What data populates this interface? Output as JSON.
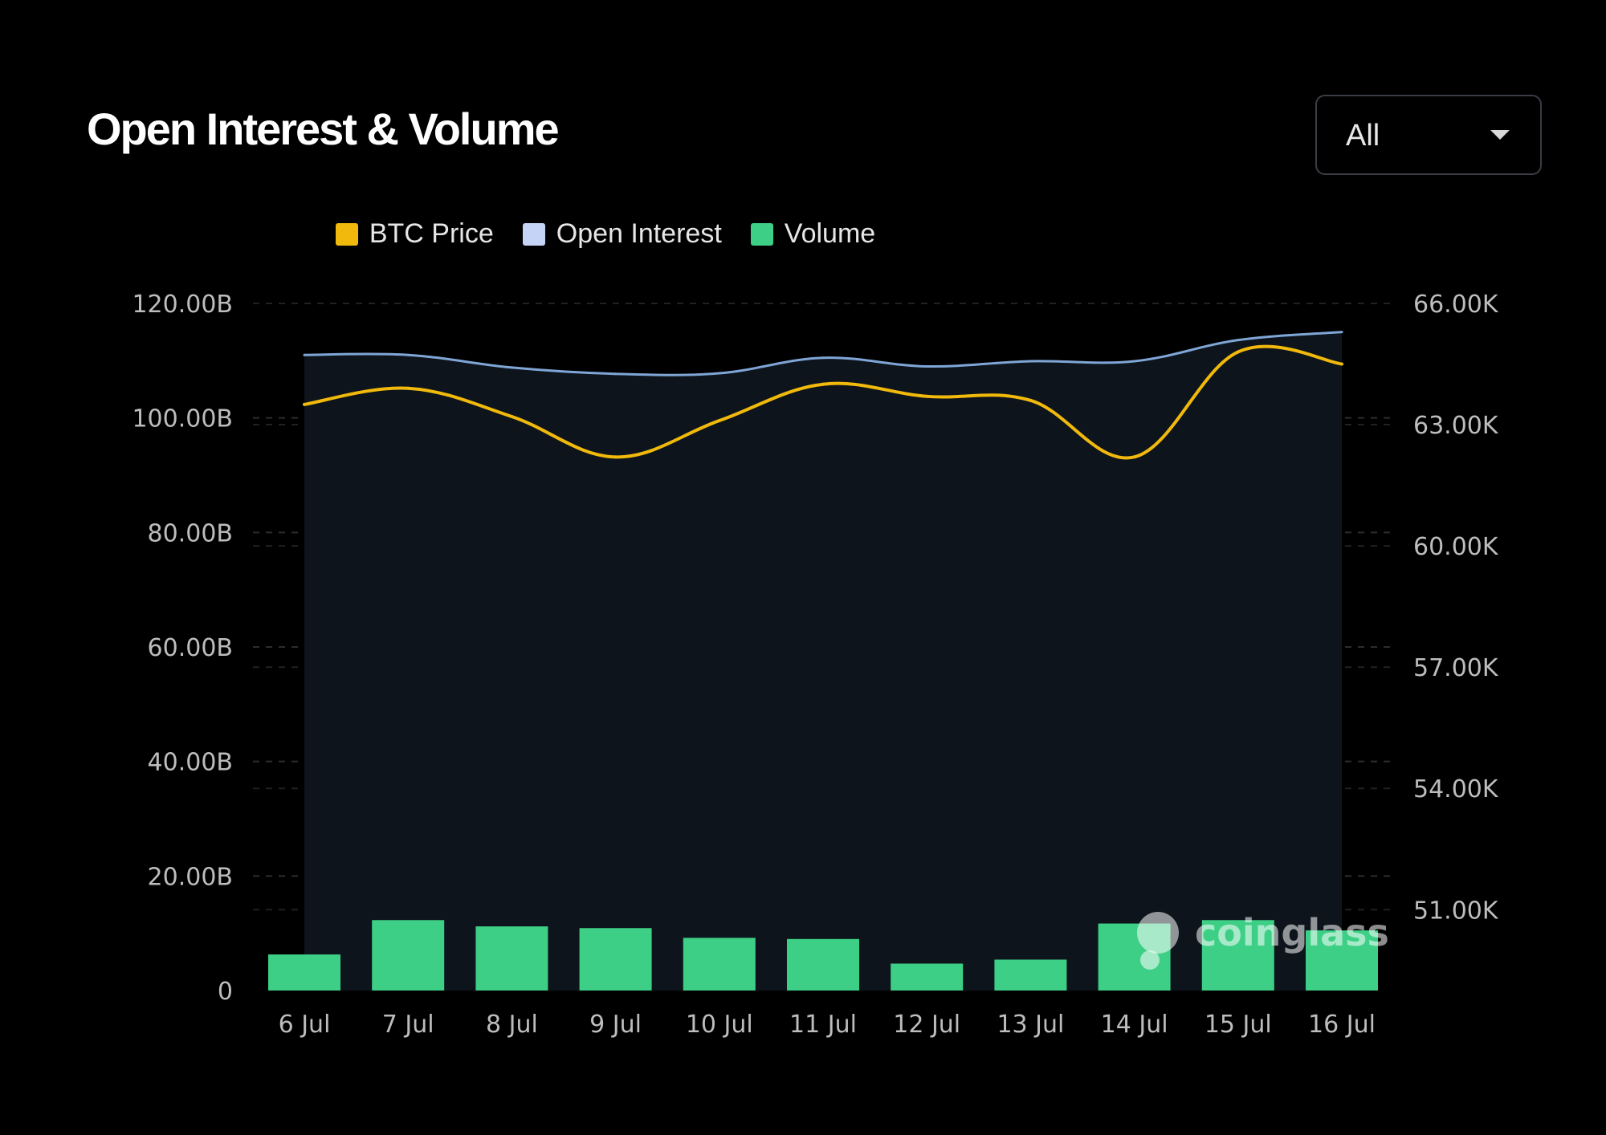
{
  "header": {
    "title": "Open Interest & Volume",
    "range_select": {
      "value": "All"
    }
  },
  "legend": [
    {
      "label": "BTC Price",
      "color": "#f0b90b"
    },
    {
      "label": "Open Interest",
      "color": "#c5d3f7"
    },
    {
      "label": "Volume",
      "color": "#3ccf85"
    }
  ],
  "watermark": "coinglass",
  "chart_data": {
    "type": "bar",
    "categories": [
      "6 Jul",
      "7 Jul",
      "8 Jul",
      "9 Jul",
      "10 Jul",
      "11 Jul",
      "12 Jul",
      "13 Jul",
      "14 Jul",
      "15 Jul",
      "16 Jul"
    ],
    "y_left": {
      "ticks": [
        "0",
        "20.00B",
        "40.00B",
        "60.00B",
        "80.00B",
        "100.00B",
        "120.00B"
      ],
      "range": [
        0,
        120
      ]
    },
    "y_right": {
      "ticks": [
        "51.00K",
        "54.00K",
        "57.00K",
        "60.00K",
        "63.00K",
        "66.00K"
      ],
      "range": [
        49000,
        66000
      ]
    },
    "grid": "horizontal-dashed",
    "legend_position": "top-center",
    "series": [
      {
        "name": "Volume",
        "type": "bar",
        "axis": "left",
        "unit": "B",
        "values": [
          6.3,
          12.3,
          11.2,
          10.9,
          9.2,
          9.0,
          4.7,
          5.4,
          11.7,
          12.3,
          10.5
        ]
      },
      {
        "name": "Open Interest",
        "type": "area",
        "axis": "left",
        "unit": "B",
        "values": [
          111.0,
          111.0,
          108.8,
          107.7,
          107.8,
          110.5,
          109.0,
          109.9,
          109.9,
          113.6,
          115.0
        ]
      },
      {
        "name": "BTC Price",
        "type": "line",
        "axis": "right",
        "values": [
          63.5,
          63.9,
          63.2,
          62.2,
          63.1,
          64.0,
          63.7,
          63.6,
          62.2,
          64.8,
          64.5
        ]
      }
    ],
    "price_unit": "K"
  }
}
